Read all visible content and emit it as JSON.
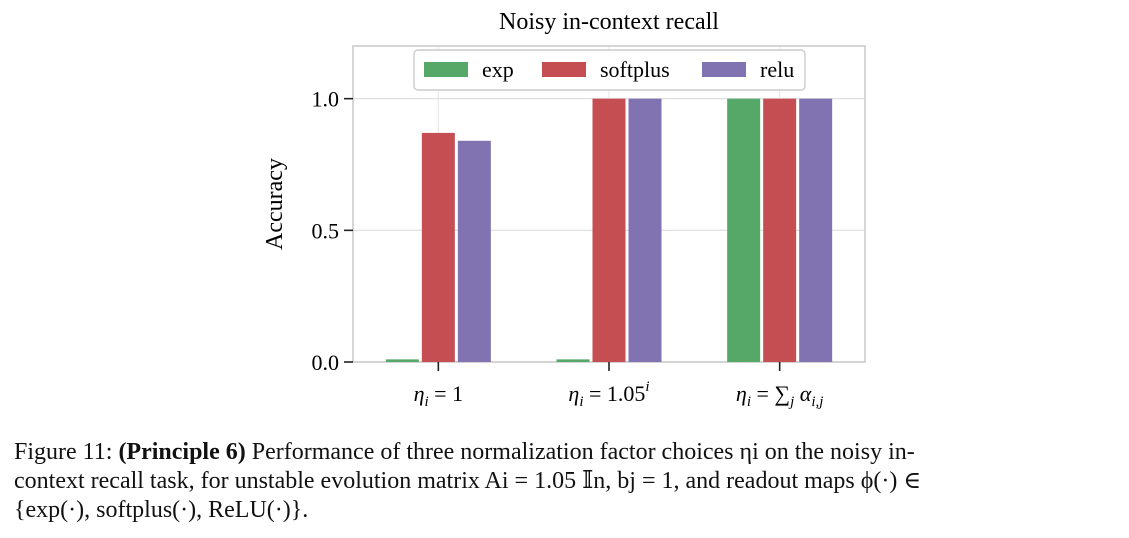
{
  "chart_data": {
    "type": "bar",
    "title": "Noisy in-context recall",
    "xlabel": "",
    "ylabel": "Accuracy",
    "ylim": [
      0,
      1.2
    ],
    "yticks": [
      "0.0",
      "0.5",
      "1.0"
    ],
    "ytick_values": [
      0,
      0.5,
      1.0
    ],
    "categories": [
      {
        "base": "η",
        "sub": "i",
        "rest": " = 1",
        "sup": ""
      },
      {
        "base": "η",
        "sub": "i",
        "rest": " = 1.05",
        "sup": "i"
      },
      {
        "base": "η",
        "sub": "i",
        "rest": " = ∑",
        "sup": "",
        "extra": " α",
        "extra_sub": "i,j",
        "sum_sub": "j"
      }
    ],
    "series": [
      {
        "name": "exp",
        "color": "#55a868",
        "values": [
          0.01,
          0.01,
          1.0
        ]
      },
      {
        "name": "softplus",
        "color": "#c44e52",
        "values": [
          0.87,
          1.0,
          1.0
        ]
      },
      {
        "name": "relu",
        "color": "#8172b2",
        "values": [
          0.84,
          1.0,
          1.0
        ]
      }
    ],
    "grid": true,
    "legend_position": "top-center"
  },
  "caption": {
    "label": "Figure 11:",
    "bold": "(Principle 6)",
    "line1": "Performance of three normalization factor choices ηi on the noisy in-",
    "line2": "context recall task, for unstable evolution matrix Ai = 1.05 𝕀n, bj = 1, and readout maps ϕ(·) ∈",
    "line3": "{exp(·), softplus(·), ReLU(·)}."
  }
}
